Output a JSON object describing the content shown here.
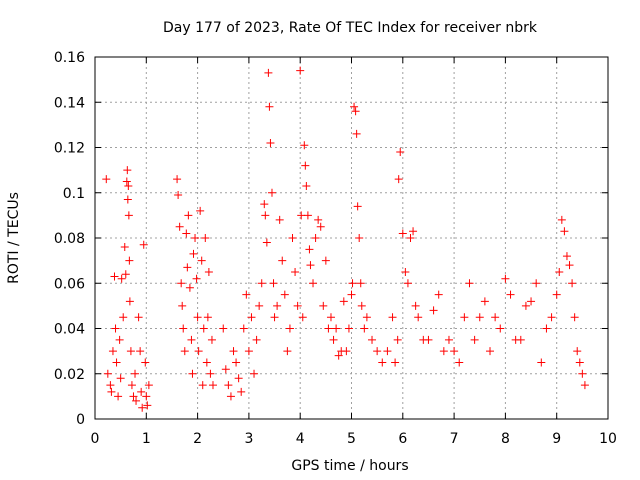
{
  "colors": {
    "points": "#ff0000",
    "grid": "#a0a0a0",
    "axis": "#000000",
    "background": "#ffffff"
  },
  "chart_data": {
    "type": "scatter",
    "title": "Day 177 of 2023, Rate Of TEC Index for receiver nbrk",
    "xlabel": "GPS time / hours",
    "ylabel": "ROTI / TECUs",
    "xlim": [
      0,
      10
    ],
    "ylim": [
      0,
      0.16
    ],
    "xticks": [
      0,
      1,
      2,
      3,
      4,
      5,
      6,
      7,
      8,
      9,
      10
    ],
    "yticks": [
      0,
      0.02,
      0.04,
      0.06,
      0.08,
      0.1,
      0.12,
      0.14,
      0.16
    ],
    "xtick_labels": [
      "0",
      "1",
      "2",
      "3",
      "4",
      "5",
      "6",
      "7",
      "8",
      "9",
      "10"
    ],
    "ytick_labels": [
      "0",
      "0.02",
      "0.04",
      "0.06",
      "0.08",
      "0.1",
      "0.12",
      "0.14",
      "0.16"
    ],
    "grid": true,
    "marker": "plus",
    "series": [
      {
        "name": "ROTI",
        "x": [
          0.22,
          0.25,
          0.3,
          0.32,
          0.35,
          0.38,
          0.4,
          0.42,
          0.45,
          0.48,
          0.5,
          0.52,
          0.55,
          0.58,
          0.6,
          0.62,
          0.63,
          0.64,
          0.65,
          0.66,
          0.67,
          0.68,
          0.7,
          0.72,
          0.75,
          0.78,
          0.8,
          0.85,
          0.88,
          0.9,
          0.92,
          0.95,
          0.98,
          1.0,
          1.02,
          1.05,
          1.6,
          1.62,
          1.65,
          1.68,
          1.7,
          1.72,
          1.75,
          1.78,
          1.8,
          1.82,
          1.85,
          1.88,
          1.9,
          1.92,
          1.95,
          1.98,
          2.0,
          2.02,
          2.05,
          2.08,
          2.1,
          2.12,
          2.15,
          2.18,
          2.2,
          2.22,
          2.25,
          2.28,
          2.3,
          2.5,
          2.55,
          2.6,
          2.65,
          2.7,
          2.75,
          2.8,
          2.85,
          2.9,
          2.95,
          3.0,
          3.05,
          3.1,
          3.15,
          3.2,
          3.25,
          3.3,
          3.32,
          3.35,
          3.38,
          3.4,
          3.42,
          3.45,
          3.48,
          3.5,
          3.55,
          3.6,
          3.65,
          3.7,
          3.75,
          3.8,
          3.85,
          3.9,
          3.95,
          4.0,
          4.02,
          4.05,
          4.08,
          4.1,
          4.12,
          4.15,
          4.18,
          4.2,
          4.25,
          4.3,
          4.35,
          4.4,
          4.45,
          4.5,
          4.55,
          4.6,
          4.65,
          4.7,
          4.75,
          4.8,
          4.85,
          4.9,
          4.95,
          5.0,
          5.02,
          5.05,
          5.08,
          5.1,
          5.12,
          5.15,
          5.18,
          5.2,
          5.25,
          5.3,
          5.4,
          5.5,
          5.6,
          5.7,
          5.8,
          5.85,
          5.9,
          5.92,
          5.95,
          6.0,
          6.05,
          6.1,
          6.15,
          6.2,
          6.25,
          6.3,
          6.4,
          6.5,
          6.6,
          6.7,
          6.8,
          6.9,
          7.0,
          7.1,
          7.2,
          7.3,
          7.4,
          7.5,
          7.6,
          7.7,
          7.8,
          7.9,
          8.0,
          8.1,
          8.2,
          8.3,
          8.4,
          8.5,
          8.6,
          8.7,
          8.8,
          8.9,
          9.0,
          9.05,
          9.1,
          9.15,
          9.2,
          9.25,
          9.3,
          9.35,
          9.4,
          9.45,
          9.5,
          9.55
        ],
        "y": [
          0.106,
          0.02,
          0.015,
          0.012,
          0.03,
          0.063,
          0.04,
          0.025,
          0.01,
          0.035,
          0.018,
          0.062,
          0.045,
          0.076,
          0.064,
          0.105,
          0.11,
          0.097,
          0.103,
          0.09,
          0.07,
          0.052,
          0.03,
          0.015,
          0.01,
          0.02,
          0.008,
          0.045,
          0.03,
          0.012,
          0.005,
          0.077,
          0.025,
          0.01,
          0.006,
          0.015,
          0.106,
          0.099,
          0.085,
          0.06,
          0.05,
          0.04,
          0.03,
          0.082,
          0.067,
          0.09,
          0.058,
          0.035,
          0.02,
          0.073,
          0.08,
          0.062,
          0.045,
          0.03,
          0.092,
          0.07,
          0.015,
          0.04,
          0.08,
          0.025,
          0.045,
          0.065,
          0.02,
          0.035,
          0.015,
          0.04,
          0.022,
          0.015,
          0.01,
          0.03,
          0.025,
          0.018,
          0.012,
          0.04,
          0.055,
          0.03,
          0.045,
          0.02,
          0.035,
          0.05,
          0.06,
          0.095,
          0.09,
          0.078,
          0.153,
          0.138,
          0.122,
          0.1,
          0.06,
          0.045,
          0.05,
          0.088,
          0.07,
          0.055,
          0.03,
          0.04,
          0.08,
          0.065,
          0.05,
          0.154,
          0.09,
          0.045,
          0.121,
          0.112,
          0.103,
          0.09,
          0.075,
          0.068,
          0.06,
          0.08,
          0.088,
          0.085,
          0.05,
          0.07,
          0.04,
          0.045,
          0.035,
          0.04,
          0.028,
          0.03,
          0.052,
          0.03,
          0.04,
          0.055,
          0.06,
          0.138,
          0.136,
          0.126,
          0.094,
          0.08,
          0.06,
          0.05,
          0.04,
          0.045,
          0.035,
          0.03,
          0.025,
          0.03,
          0.045,
          0.025,
          0.035,
          0.106,
          0.118,
          0.082,
          0.065,
          0.06,
          0.08,
          0.083,
          0.05,
          0.045,
          0.035,
          0.035,
          0.048,
          0.055,
          0.03,
          0.035,
          0.03,
          0.025,
          0.045,
          0.06,
          0.035,
          0.045,
          0.052,
          0.03,
          0.045,
          0.04,
          0.062,
          0.055,
          0.035,
          0.035,
          0.05,
          0.052,
          0.06,
          0.025,
          0.04,
          0.045,
          0.055,
          0.065,
          0.088,
          0.083,
          0.072,
          0.068,
          0.06,
          0.045,
          0.03,
          0.025,
          0.02,
          0.015
        ]
      }
    ]
  }
}
